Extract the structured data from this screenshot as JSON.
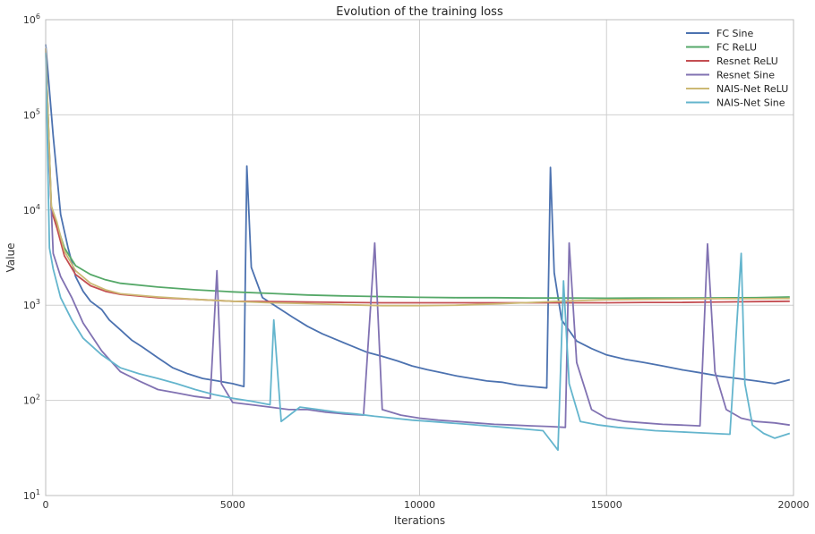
{
  "chart_data": {
    "type": "line",
    "title": "Evolution of the training loss",
    "xlabel": "Iterations",
    "ylabel": "Value",
    "xlim": [
      0,
      20000
    ],
    "ylim": [
      10,
      1000000
    ],
    "yscale": "log",
    "grid": true,
    "legend_position": "top-right",
    "x_ticks": [
      0,
      5000,
      10000,
      15000,
      20000
    ],
    "x_tick_labels": [
      "0",
      "5000",
      "10000",
      "15000",
      "20000"
    ],
    "y_ticks": [
      10,
      100,
      1000,
      10000,
      100000,
      1000000
    ],
    "y_tick_base": [
      "10",
      "10",
      "10",
      "10",
      "10",
      "10"
    ],
    "y_tick_exp": [
      "1",
      "2",
      "3",
      "4",
      "5",
      "6"
    ],
    "series": [
      {
        "name": "FC Sine",
        "color": "#4c72b0",
        "x": [
          0,
          200,
          400,
          600,
          800,
          1000,
          1200,
          1500,
          1700,
          2000,
          2300,
          2600,
          3000,
          3400,
          3800,
          4200,
          4600,
          5000,
          5300,
          5380,
          5500,
          5800,
          6200,
          6600,
          7000,
          7400,
          7800,
          8200,
          8600,
          9000,
          9400,
          9800,
          10200,
          10600,
          11000,
          11400,
          11800,
          12200,
          12600,
          13000,
          13400,
          13500,
          13600,
          13800,
          14200,
          14600,
          15000,
          15500,
          16000,
          16500,
          17000,
          17500,
          18000,
          18500,
          19000,
          19500,
          19900
        ],
        "y": [
          550000,
          60000,
          9000,
          4000,
          2000,
          1400,
          1100,
          900,
          700,
          550,
          430,
          360,
          280,
          220,
          190,
          170,
          160,
          150,
          140,
          29000,
          2500,
          1200,
          950,
          750,
          600,
          500,
          430,
          370,
          320,
          290,
          260,
          230,
          210,
          195,
          180,
          170,
          160,
          155,
          145,
          140,
          135,
          28000,
          2200,
          700,
          420,
          350,
          300,
          270,
          250,
          230,
          210,
          195,
          180,
          170,
          160,
          150,
          165
        ]
      },
      {
        "name": "FC ReLU",
        "color": "#55a868",
        "x": [
          0,
          150,
          300,
          500,
          800,
          1200,
          1600,
          2000,
          3000,
          4000,
          5000,
          6000,
          7000,
          8000,
          9000,
          10000,
          11000,
          12000,
          13000,
          14000,
          15000,
          16000,
          17000,
          18000,
          19000,
          19900
        ],
        "y": [
          500000,
          11000,
          7000,
          4000,
          2600,
          2100,
          1850,
          1700,
          1550,
          1450,
          1380,
          1330,
          1280,
          1250,
          1230,
          1210,
          1200,
          1200,
          1190,
          1190,
          1185,
          1190,
          1190,
          1195,
          1200,
          1220
        ]
      },
      {
        "name": "Resnet ReLU",
        "color": "#c44e52",
        "x": [
          0,
          150,
          300,
          500,
          800,
          1200,
          1600,
          2000,
          3000,
          4000,
          5000,
          6000,
          7000,
          8000,
          9000,
          10000,
          11000,
          12000,
          13000,
          14000,
          15000,
          16000,
          17000,
          18000,
          19000,
          19900
        ],
        "y": [
          500000,
          10000,
          6500,
          3300,
          2100,
          1600,
          1400,
          1300,
          1200,
          1150,
          1100,
          1090,
          1080,
          1070,
          1060,
          1060,
          1060,
          1060,
          1060,
          1060,
          1060,
          1070,
          1070,
          1080,
          1090,
          1100
        ]
      },
      {
        "name": "Resnet Sine",
        "color": "#8172b2",
        "x": [
          0,
          100,
          200,
          400,
          700,
          1000,
          1500,
          2000,
          2500,
          3000,
          3500,
          4000,
          4400,
          4580,
          4700,
          5000,
          5500,
          6000,
          6500,
          7000,
          7500,
          8000,
          8500,
          8800,
          9000,
          9500,
          10000,
          10500,
          11000,
          11500,
          12000,
          12500,
          13000,
          13500,
          13900,
          14000,
          14200,
          14600,
          15000,
          15500,
          16000,
          16500,
          17000,
          17500,
          17700,
          17900,
          18200,
          18600,
          19000,
          19500,
          19900
        ],
        "y": [
          500000,
          30000,
          3500,
          2000,
          1200,
          650,
          330,
          200,
          160,
          130,
          120,
          110,
          105,
          2300,
          150,
          95,
          90,
          85,
          80,
          80,
          75,
          72,
          70,
          4500,
          80,
          70,
          65,
          62,
          60,
          58,
          56,
          55,
          54,
          53,
          52,
          4500,
          250,
          80,
          65,
          60,
          58,
          56,
          55,
          54,
          4400,
          200,
          80,
          65,
          60,
          58,
          55
        ]
      },
      {
        "name": "NAIS-Net ReLU",
        "color": "#ccb974",
        "x": [
          0,
          150,
          300,
          500,
          800,
          1200,
          1600,
          2000,
          3000,
          4000,
          5000,
          6000,
          7000,
          8000,
          9000,
          10000,
          11000,
          12000,
          13000,
          14000,
          15000,
          16000,
          17000,
          18000,
          19000,
          19900
        ],
        "y": [
          500000,
          11000,
          7500,
          3700,
          2300,
          1700,
          1450,
          1320,
          1220,
          1150,
          1100,
          1060,
          1040,
          1010,
          990,
          990,
          1000,
          1030,
          1070,
          1110,
          1140,
          1150,
          1160,
          1170,
          1170,
          1175
        ]
      },
      {
        "name": "NAIS-Net Sine",
        "color": "#64b5cd",
        "x": [
          0,
          100,
          200,
          400,
          700,
          1000,
          1500,
          2000,
          2500,
          3000,
          3500,
          4000,
          4500,
          5000,
          5500,
          6000,
          6100,
          6300,
          6800,
          7300,
          7800,
          8300,
          8800,
          9300,
          9800,
          10300,
          10800,
          11300,
          11800,
          12300,
          12800,
          13300,
          13700,
          13850,
          14000,
          14300,
          14800,
          15300,
          15800,
          16300,
          16800,
          17300,
          17800,
          18300,
          18600,
          18700,
          18900,
          19200,
          19500,
          19900
        ],
        "y": [
          450000,
          4000,
          2400,
          1200,
          700,
          450,
          300,
          220,
          190,
          170,
          150,
          130,
          115,
          105,
          98,
          90,
          700,
          60,
          85,
          80,
          75,
          72,
          68,
          65,
          62,
          60,
          58,
          56,
          54,
          52,
          50,
          48,
          30,
          1800,
          150,
          60,
          55,
          52,
          50,
          48,
          47,
          46,
          45,
          44,
          3500,
          150,
          55,
          45,
          40,
          45
        ]
      }
    ]
  }
}
